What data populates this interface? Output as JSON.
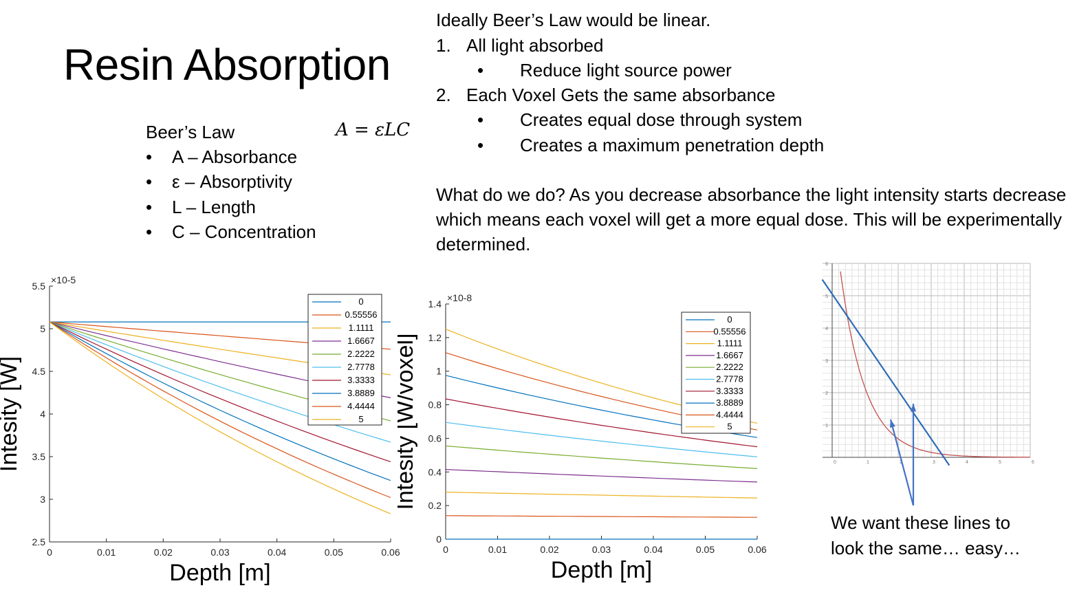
{
  "slide": {
    "title": "Resin Absorption",
    "beers_law": {
      "heading": "Beer’s Law",
      "equation": "A = εLC",
      "bullet_glyph": "•",
      "items": [
        "A – Absorbance",
        "ε – Absorptivity",
        "L – Length",
        "C – Concentration"
      ]
    },
    "ideal": {
      "intro": "Ideally Beer’s Law would be linear.",
      "points": [
        {
          "num": "1.",
          "text": "All light absorbed",
          "subs": [
            "Reduce light source power"
          ]
        },
        {
          "num": "2.",
          "text": "Each Voxel Gets the same absorbance",
          "subs": [
            "Creates equal dose through system",
            "Creates a maximum penetration depth"
          ]
        }
      ]
    },
    "paragraph": "What do we do? As you decrease absorbance the light intensity starts decrease which means each voxel will get a more equal dose. This will be experimentally determined.",
    "annotation": [
      "We want these lines to",
      "look the same… easy…"
    ]
  },
  "chart_data": [
    {
      "type": "line",
      "xlabel": "Depth [m]",
      "ylabel": "Intesity [W]",
      "y_exponent_label": "×10-5",
      "xlim": [
        0,
        0.06
      ],
      "ylim": [
        2.5,
        5.5
      ],
      "xticks": [
        "0",
        "0.01",
        "0.02",
        "0.03",
        "0.04",
        "0.05",
        "0.06"
      ],
      "yticks": [
        "2.5",
        "3",
        "3.5",
        "4",
        "4.5",
        "5",
        "5.5"
      ],
      "legend_position": "top-right",
      "x": [
        0,
        0.06
      ],
      "series": [
        {
          "name": "0",
          "color": "#0072BD",
          "start": 5.08,
          "end": 5.08
        },
        {
          "name": "0.55556",
          "color": "#D95319",
          "start": 5.08,
          "end": 4.76
        },
        {
          "name": "1.1111",
          "color": "#EDB120",
          "start": 5.08,
          "end": 4.46
        },
        {
          "name": "1.6667",
          "color": "#7E2F8E",
          "start": 5.08,
          "end": 4.19
        },
        {
          "name": "2.2222",
          "color": "#77AC30",
          "start": 5.08,
          "end": 3.92
        },
        {
          "name": "2.7778",
          "color": "#4DBEEE",
          "start": 5.08,
          "end": 3.67
        },
        {
          "name": "3.3333",
          "color": "#A2142F",
          "start": 5.08,
          "end": 3.44
        },
        {
          "name": "3.8889",
          "color": "#0072BD",
          "start": 5.08,
          "end": 3.22
        },
        {
          "name": "4.4444",
          "color": "#D95319",
          "start": 5.08,
          "end": 3.02
        },
        {
          "name": "5",
          "color": "#EDB120",
          "start": 5.08,
          "end": 2.83
        }
      ]
    },
    {
      "type": "line",
      "xlabel": "Depth [m]",
      "ylabel": "Intesity [W/voxel]",
      "y_exponent_label": "×10-8",
      "xlim": [
        0,
        0.06
      ],
      "ylim": [
        0,
        1.4
      ],
      "xticks": [
        "0",
        "0.01",
        "0.02",
        "0.03",
        "0.04",
        "0.05",
        "0.06"
      ],
      "yticks": [
        "0",
        "0.2",
        "0.4",
        "0.6",
        "0.8",
        "1",
        "1.2",
        "1.4"
      ],
      "legend_position": "top-right",
      "x": [
        0,
        0.06
      ],
      "series": [
        {
          "name": "0",
          "color": "#0072BD",
          "start": 0.0,
          "end": 0.0
        },
        {
          "name": "0.55556",
          "color": "#D95319",
          "start": 0.14,
          "end": 0.13
        },
        {
          "name": "1.1111",
          "color": "#EDB120",
          "start": 0.28,
          "end": 0.245
        },
        {
          "name": "1.6667",
          "color": "#7E2F8E",
          "start": 0.415,
          "end": 0.34
        },
        {
          "name": "2.2222",
          "color": "#77AC30",
          "start": 0.555,
          "end": 0.42
        },
        {
          "name": "2.7778",
          "color": "#4DBEEE",
          "start": 0.695,
          "end": 0.49
        },
        {
          "name": "3.3333",
          "color": "#A2142F",
          "start": 0.835,
          "end": 0.55
        },
        {
          "name": "3.8889",
          "color": "#0072BD",
          "start": 0.975,
          "end": 0.605
        },
        {
          "name": "4.4444",
          "color": "#D95319",
          "start": 1.11,
          "end": 0.65
        },
        {
          "name": "5",
          "color": "#EDB120",
          "start": 1.25,
          "end": 0.69
        }
      ]
    },
    {
      "type": "line",
      "xlim": [
        0,
        6
      ],
      "ylim": [
        0,
        6
      ],
      "grid": true,
      "xticks": [
        "0",
        "1",
        "2",
        "3",
        "4",
        "5",
        "6"
      ],
      "yticks": [
        "1",
        "2",
        "3",
        "4",
        "5",
        "6"
      ],
      "series": [
        {
          "kind": "exponential",
          "color": "#C0504D",
          "amplitude": 8,
          "rate": 1.32
        },
        {
          "kind": "linear",
          "color": "#2E6CB5",
          "points": [
            [
              -0.3,
              5.5
            ],
            [
              3.55,
              -0.25
            ]
          ]
        }
      ],
      "arrow_color": "#4472C4"
    }
  ]
}
